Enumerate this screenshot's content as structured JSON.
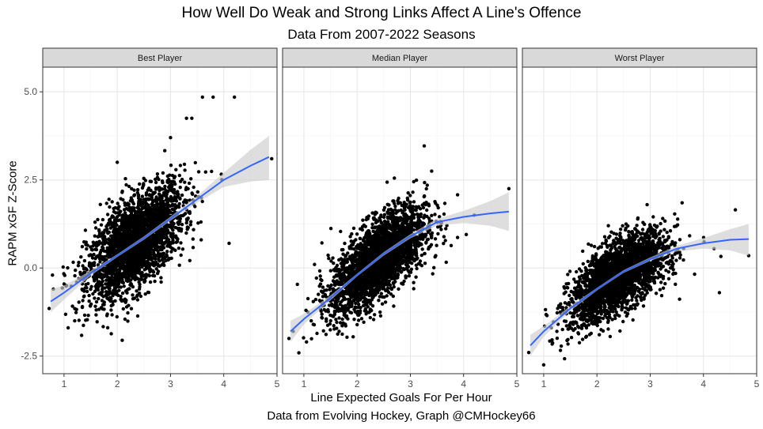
{
  "chart_data": {
    "type": "scatter",
    "title": "How Well Do Weak and Strong Links Affect A Line's Offence",
    "subtitle": "Data From 2007-2022 Seasons",
    "xlabel": "Line Expected Goals For Per Hour",
    "ylabel": "RAPM xGF Z-Score",
    "caption": "Data from Evolving Hockey, Graph @CMHockey66",
    "xlim": [
      0.6,
      5.0
    ],
    "ylim": [
      -3.0,
      5.7
    ],
    "x_ticks": [
      1,
      2,
      3,
      4,
      5
    ],
    "y_ticks": [
      -2.5,
      0.0,
      2.5,
      5.0
    ],
    "x_tick_labels": [
      "1",
      "2",
      "3",
      "4",
      "5"
    ],
    "y_tick_labels": [
      "-2.5",
      "0.0",
      "2.5",
      "5.0"
    ],
    "grid": true,
    "point_color": "#000000",
    "smooth_color": "#3366ff",
    "ribbon_color": "#cccccc",
    "strip_color": "#d9d9d9",
    "panels": [
      {
        "label": "Best Player",
        "smooth": {
          "x": [
            0.75,
            1.0,
            1.5,
            2.0,
            2.5,
            3.0,
            3.5,
            4.0,
            4.5,
            4.85
          ],
          "y": [
            -0.95,
            -0.7,
            -0.15,
            0.35,
            0.85,
            1.4,
            1.95,
            2.5,
            2.9,
            3.15
          ],
          "lower": [
            -1.25,
            -0.9,
            -0.22,
            0.31,
            0.8,
            1.34,
            1.85,
            2.3,
            2.45,
            2.5
          ],
          "upper": [
            -0.6,
            -0.5,
            -0.08,
            0.39,
            0.9,
            1.46,
            2.05,
            2.7,
            3.35,
            3.75
          ]
        },
        "cloud": {
          "x_mean": 2.35,
          "x_sd": 0.45,
          "resid_sd": 0.62,
          "n": 2600
        },
        "points": [
          {
            "x": 0.72,
            "y": -1.15
          },
          {
            "x": 0.8,
            "y": -0.6
          },
          {
            "x": 1.2,
            "y": -1.5
          },
          {
            "x": 3.6,
            "y": 4.85
          },
          {
            "x": 3.8,
            "y": 4.85
          },
          {
            "x": 4.2,
            "y": 4.85
          },
          {
            "x": 3.3,
            "y": 4.25
          },
          {
            "x": 3.4,
            "y": 4.25
          },
          {
            "x": 3.0,
            "y": 3.7
          },
          {
            "x": 4.9,
            "y": 3.1
          },
          {
            "x": 4.1,
            "y": 0.7
          },
          {
            "x": 2.0,
            "y": 3.0
          }
        ]
      },
      {
        "label": "Median Player",
        "smooth": {
          "x": [
            0.75,
            1.0,
            1.5,
            2.0,
            2.5,
            3.0,
            3.5,
            4.0,
            4.5,
            4.85
          ],
          "y": [
            -1.8,
            -1.45,
            -0.85,
            -0.2,
            0.4,
            0.9,
            1.3,
            1.45,
            1.55,
            1.6
          ],
          "lower": [
            -2.1,
            -1.6,
            -0.92,
            -0.24,
            0.35,
            0.84,
            1.2,
            1.28,
            1.2,
            1.05
          ],
          "upper": [
            -1.5,
            -1.3,
            -0.78,
            -0.16,
            0.45,
            0.96,
            1.4,
            1.62,
            1.9,
            2.15
          ]
        },
        "cloud": {
          "x_mean": 2.4,
          "x_sd": 0.45,
          "resid_sd": 0.55,
          "n": 2600
        },
        "points": [
          {
            "x": 0.72,
            "y": -2.0
          },
          {
            "x": 0.8,
            "y": -1.8
          },
          {
            "x": 1.05,
            "y": -2.1
          },
          {
            "x": 4.85,
            "y": 2.25
          },
          {
            "x": 3.4,
            "y": 2.75
          },
          {
            "x": 2.7,
            "y": 2.55
          },
          {
            "x": 4.2,
            "y": 1.5
          },
          {
            "x": 4.05,
            "y": 0.95
          },
          {
            "x": 1.2,
            "y": 0.1
          }
        ]
      },
      {
        "label": "Worst Player",
        "smooth": {
          "x": [
            0.75,
            1.0,
            1.5,
            2.0,
            2.5,
            3.0,
            3.5,
            4.0,
            4.5,
            4.85
          ],
          "y": [
            -2.2,
            -1.8,
            -1.15,
            -0.6,
            -0.1,
            0.25,
            0.55,
            0.7,
            0.8,
            0.82
          ],
          "lower": [
            -2.5,
            -1.95,
            -1.22,
            -0.64,
            -0.14,
            0.2,
            0.47,
            0.55,
            0.5,
            0.35
          ],
          "upper": [
            -1.9,
            -1.65,
            -1.08,
            -0.56,
            -0.06,
            0.3,
            0.63,
            0.85,
            1.1,
            1.25
          ]
        },
        "cloud": {
          "x_mean": 2.4,
          "x_sd": 0.45,
          "resid_sd": 0.48,
          "n": 2600
        },
        "points": [
          {
            "x": 0.72,
            "y": -2.4
          },
          {
            "x": 1.0,
            "y": -2.75
          },
          {
            "x": 4.6,
            "y": 1.65
          },
          {
            "x": 4.85,
            "y": 0.35
          },
          {
            "x": 4.3,
            "y": -0.7
          },
          {
            "x": 3.6,
            "y": 1.85
          },
          {
            "x": 4.2,
            "y": 0.55
          }
        ]
      }
    ]
  }
}
